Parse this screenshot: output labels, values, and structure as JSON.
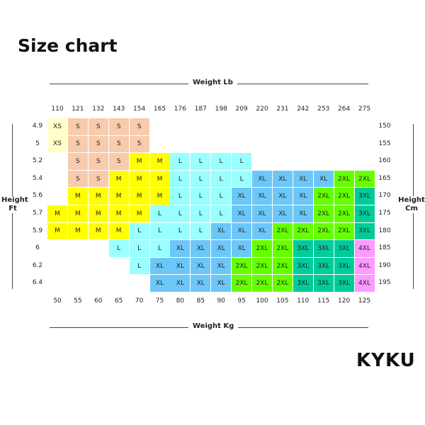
{
  "title": "Size chart",
  "brand": "KYKU",
  "axes": {
    "top": "Weight Lb",
    "bottom": "Weight Kg",
    "left": [
      "Height",
      "Ft"
    ],
    "right": [
      "Height",
      "Cm"
    ]
  },
  "weight_lb": [
    "110",
    "121",
    "132",
    "143",
    "154",
    "165",
    "176",
    "187",
    "198",
    "209",
    "220",
    "231",
    "242",
    "253",
    "264",
    "275"
  ],
  "weight_kg": [
    "50",
    "55",
    "60",
    "65",
    "70",
    "75",
    "80",
    "85",
    "90",
    "95",
    "100",
    "105",
    "110",
    "115",
    "120",
    "125"
  ],
  "height_ft": [
    "4.9",
    "5",
    "5.2",
    "5.4",
    "5.6",
    "5.7",
    "5.9",
    "6",
    "6.2",
    "6.4"
  ],
  "height_cm": [
    "150",
    "155",
    "160",
    "165",
    "170",
    "175",
    "180",
    "185",
    "190",
    "195"
  ],
  "size_colors": {
    "XS": "#FFFFCC",
    "S": "#F8CBAD",
    "M": "#FFFF00",
    "L": "#99FFFF",
    "XL": "#6CC7F8",
    "2XL": "#66FF00",
    "3XL": "#00CC99",
    "4XL": "#FF99FF"
  },
  "grid": [
    [
      "XS",
      "S",
      "S",
      "S",
      "S",
      "",
      "",
      "",
      "",
      "",
      "",
      "",
      "",
      "",
      "",
      ""
    ],
    [
      "XS",
      "S",
      "S",
      "S",
      "S",
      "",
      "",
      "",
      "",
      "",
      "",
      "",
      "",
      "",
      "",
      ""
    ],
    [
      "",
      "S",
      "S",
      "S",
      "M",
      "M",
      "L",
      "L",
      "L",
      "L",
      "",
      "",
      "",
      "",
      "",
      ""
    ],
    [
      "",
      "S",
      "S",
      "M",
      "M",
      "M",
      "L",
      "L",
      "L",
      "L",
      "XL",
      "XL",
      "XL",
      "XL",
      "2XL",
      "2XL"
    ],
    [
      "",
      "M",
      "M",
      "M",
      "M",
      "M",
      "L",
      "L",
      "L",
      "XL",
      "XL",
      "XL",
      "XL",
      "2XL",
      "2XL",
      "3XL"
    ],
    [
      "M",
      "M",
      "M",
      "M",
      "M",
      "L",
      "L",
      "L",
      "L",
      "XL",
      "XL",
      "XL",
      "XL",
      "2XL",
      "2XL",
      "3XL"
    ],
    [
      "M",
      "M",
      "M",
      "M",
      "L",
      "L",
      "L",
      "L",
      "XL",
      "XL",
      "XL",
      "2XL",
      "2XL",
      "2XL",
      "2XL",
      "3XL"
    ],
    [
      "",
      "",
      "",
      "L",
      "L",
      "L",
      "XL",
      "XL",
      "XL",
      "XL",
      "2XL",
      "2XL",
      "3XL",
      "3XL",
      "3XL",
      "4XL"
    ],
    [
      "",
      "",
      "",
      "",
      "L",
      "XL",
      "XL",
      "XL",
      "XL",
      "2XL",
      "2XL",
      "2XL",
      "3XL",
      "3XL",
      "3XL",
      "4XL"
    ],
    [
      "",
      "",
      "",
      "",
      "",
      "XL",
      "XL",
      "XL",
      "XL",
      "2XL",
      "2XL",
      "2XL",
      "3XL",
      "3XL",
      "3XL",
      "4XL"
    ]
  ]
}
